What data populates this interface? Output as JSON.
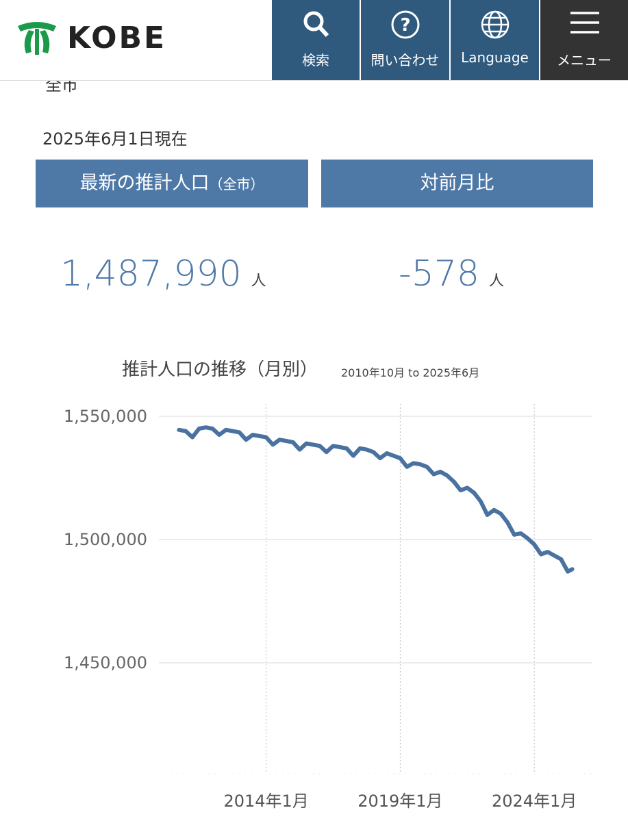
{
  "header": {
    "logo": "KOBE",
    "nav": [
      "検索",
      "問い合わせ",
      "Language",
      "メニュー"
    ]
  },
  "clipped_text": "全市",
  "as_of": "2025年6月1日現在",
  "stats": [
    {
      "label": "最新の推計人口",
      "sublabel": "（全市）",
      "value": "1,487,990",
      "unit": "人"
    },
    {
      "label": "対前月比",
      "value": "-578",
      "unit": "人"
    }
  ],
  "chart_data": {
    "type": "line",
    "title": "推計人口の推移（月別）",
    "subtitle": "2010年10月 to 2025年6月",
    "x": [
      "2010-10",
      "2011-01",
      "2011-04",
      "2011-07",
      "2011-10",
      "2012-01",
      "2012-04",
      "2012-07",
      "2012-10",
      "2013-01",
      "2013-04",
      "2013-07",
      "2013-10",
      "2014-01",
      "2014-04",
      "2014-07",
      "2014-10",
      "2015-01",
      "2015-04",
      "2015-07",
      "2015-10",
      "2016-01",
      "2016-04",
      "2016-07",
      "2016-10",
      "2017-01",
      "2017-04",
      "2017-07",
      "2017-10",
      "2018-01",
      "2018-04",
      "2018-07",
      "2018-10",
      "2019-01",
      "2019-04",
      "2019-07",
      "2019-10",
      "2020-01",
      "2020-04",
      "2020-07",
      "2020-10",
      "2021-01",
      "2021-04",
      "2021-07",
      "2021-10",
      "2022-01",
      "2022-04",
      "2022-07",
      "2022-10",
      "2023-01",
      "2023-04",
      "2023-07",
      "2023-10",
      "2024-01",
      "2024-04",
      "2024-07",
      "2024-10",
      "2025-01",
      "2025-04",
      "2025-06"
    ],
    "series": [
      {
        "name": "推計人口",
        "color": "#4a72a0",
        "values": [
          1544500,
          1544000,
          1541500,
          1545000,
          1545500,
          1545000,
          1542500,
          1544500,
          1544000,
          1543500,
          1540500,
          1542500,
          1542000,
          1541500,
          1538500,
          1540500,
          1540000,
          1539500,
          1536500,
          1539000,
          1538500,
          1538000,
          1535500,
          1538000,
          1537500,
          1537000,
          1534000,
          1537000,
          1536500,
          1535500,
          1533000,
          1535000,
          1534000,
          1533000,
          1529500,
          1531000,
          1530500,
          1529500,
          1526500,
          1527500,
          1526000,
          1523500,
          1520000,
          1521000,
          1519000,
          1515500,
          1510000,
          1512000,
          1510500,
          1507000,
          1502000,
          1502500,
          1500500,
          1498000,
          1494000,
          1495000,
          1493500,
          1492000,
          1487000,
          1487990
        ]
      }
    ],
    "xlim": [
      "2010-01",
      "2026-03"
    ],
    "xticks": [
      {
        "value": "2014-01",
        "label": "2014年1月"
      },
      {
        "value": "2019-01",
        "label": "2019年1月"
      },
      {
        "value": "2024-01",
        "label": "2024年1月"
      }
    ],
    "ylim": [
      1405000,
      1555000
    ],
    "yticks": [
      {
        "value": 1450000,
        "label": "1,450,000"
      },
      {
        "value": 1500000,
        "label": "1,500,000"
      },
      {
        "value": 1550000,
        "label": "1,550,000"
      }
    ],
    "grid": true
  }
}
